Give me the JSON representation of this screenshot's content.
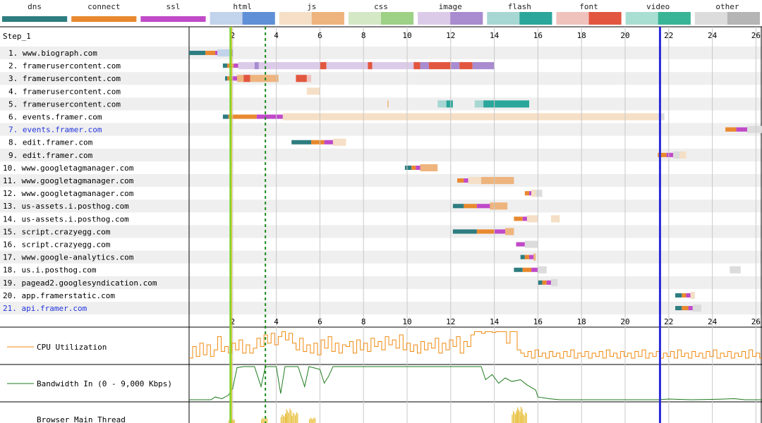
{
  "legend": [
    {
      "label": "dns",
      "colors": [
        "#2e7d80",
        "#2e7d80"
      ]
    },
    {
      "label": "connect",
      "colors": [
        "#e8892f",
        "#e8892f"
      ]
    },
    {
      "label": "ssl",
      "colors": [
        "#c04ac8",
        "#c04ac8"
      ]
    },
    {
      "label": "html",
      "colors": [
        "#c2d3ec",
        "#5f8fd6"
      ]
    },
    {
      "label": "js",
      "colors": [
        "#f5dfc6",
        "#eeb47e"
      ]
    },
    {
      "label": "css",
      "colors": [
        "#d4e8c6",
        "#9dd185"
      ]
    },
    {
      "label": "image",
      "colors": [
        "#dccbe8",
        "#a98bd0"
      ]
    },
    {
      "label": "flash",
      "colors": [
        "#a7d7d3",
        "#2aa69a"
      ]
    },
    {
      "label": "font",
      "colors": [
        "#f0c2bc",
        "#e2563f"
      ]
    },
    {
      "label": "video",
      "colors": [
        "#a9ded3",
        "#38b596"
      ]
    },
    {
      "label": "other",
      "colors": [
        "#dcdcdc",
        "#b5b5b5"
      ]
    }
  ],
  "step_label": "Step_1",
  "chart_data": {
    "type": "waterfall",
    "x_unit": "seconds",
    "x_range": [
      0,
      26.5
    ],
    "x_ticks": [
      2,
      4,
      6,
      8,
      10,
      12,
      14,
      16,
      18,
      20,
      22,
      24,
      26
    ],
    "markers": [
      {
        "name": "start-render",
        "time": 1.9,
        "color": "#7fd43a",
        "style": "solid"
      },
      {
        "name": "first-contentful-paint",
        "time": 1.95,
        "color": "#e0c000",
        "style": "solid"
      },
      {
        "name": "dom-content-loaded",
        "time": 3.5,
        "color": "#1a8a1a",
        "style": "dashed"
      },
      {
        "name": "onload",
        "time": 21.6,
        "color": "#2a2ad8",
        "style": "solid"
      }
    ],
    "requests": [
      {
        "label": "1. www.biograph.com",
        "type": "html",
        "link": false,
        "phases": {
          "dns": [
            0,
            0.75
          ],
          "connect": [
            0.75,
            1.2
          ],
          "ssl": [
            1.2,
            1.3
          ]
        },
        "segments": [
          [
            1.3,
            1.4,
            "l"
          ],
          [
            1.4,
            1.9,
            "l"
          ],
          [
            1.9,
            2.0,
            "d"
          ]
        ]
      },
      {
        "label": "2. framerusercontent.com",
        "type": "image",
        "link": false,
        "phases": {
          "dns": [
            1.55,
            1.75
          ],
          "connect": [
            1.75,
            2.05
          ],
          "ssl": [
            2.05,
            2.25
          ]
        },
        "segments": [
          [
            2.25,
            3.0,
            "l"
          ],
          [
            3.0,
            3.2,
            "d"
          ],
          [
            3.2,
            6.0,
            "l"
          ],
          [
            6.0,
            6.3,
            "f"
          ],
          [
            6.3,
            8.2,
            "l"
          ],
          [
            8.2,
            8.4,
            "f"
          ],
          [
            8.4,
            10.3,
            "l"
          ],
          [
            10.3,
            10.6,
            "f"
          ],
          [
            10.6,
            11.0,
            "d"
          ],
          [
            11.0,
            12.0,
            "f"
          ],
          [
            12.0,
            12.4,
            "d"
          ],
          [
            12.4,
            13.0,
            "f"
          ],
          [
            13.0,
            14.0,
            "d"
          ]
        ]
      },
      {
        "label": "3. framerusercontent.com",
        "type": "font",
        "link": false,
        "phases": {
          "dns": [
            1.65,
            1.75
          ],
          "connect": [
            1.75,
            1.95
          ],
          "ssl": [
            1.95,
            2.2
          ]
        },
        "segments": [
          [
            2.2,
            2.5,
            "j"
          ],
          [
            2.5,
            2.8,
            "f"
          ],
          [
            2.8,
            3.3,
            "j"
          ],
          [
            3.3,
            4.1,
            "jd"
          ],
          [
            4.9,
            5.4,
            "f"
          ],
          [
            5.4,
            5.6,
            "fd"
          ]
        ]
      },
      {
        "label": "4. framerusercontent.com",
        "type": "js",
        "link": false,
        "phases": {},
        "segments": [
          [
            5.4,
            6.0,
            "jl"
          ]
        ]
      },
      {
        "label": "5. framerusercontent.com",
        "type": "flash",
        "link": false,
        "phases": {},
        "segments": [
          [
            9.1,
            9.15,
            "jd"
          ],
          [
            11.4,
            11.8,
            "l"
          ],
          [
            11.8,
            12.1,
            "d"
          ],
          [
            13.1,
            13.5,
            "l"
          ],
          [
            13.5,
            15.6,
            "d"
          ]
        ]
      },
      {
        "label": "6. events.framer.com",
        "type": "js",
        "link": false,
        "phases": {
          "dns": [
            1.55,
            1.8
          ],
          "connect": [
            1.8,
            3.1
          ],
          "ssl": [
            3.1,
            4.3
          ]
        },
        "segments": [
          [
            4.3,
            21.5,
            "jl"
          ],
          [
            21.5,
            21.8,
            "ol"
          ]
        ]
      },
      {
        "label": "7. events.framer.com",
        "type": "other",
        "link": true,
        "phases": {
          "connect": [
            24.6,
            25.1
          ],
          "ssl": [
            25.1,
            25.6
          ]
        },
        "segments": [
          [
            25.6,
            26.5,
            "ol"
          ]
        ]
      },
      {
        "label": "8. edit.framer.com",
        "type": "js",
        "link": false,
        "phases": {
          "dns": [
            4.7,
            5.6
          ],
          "connect": [
            5.6,
            6.2
          ],
          "ssl": [
            6.2,
            6.6
          ]
        },
        "segments": [
          [
            6.6,
            7.2,
            "jl"
          ]
        ]
      },
      {
        "label": "9. edit.framer.com",
        "type": "other",
        "link": false,
        "phases": {
          "connect": [
            21.5,
            21.9
          ],
          "ssl": [
            21.9,
            22.2
          ]
        },
        "segments": [
          [
            22.2,
            22.5,
            "ol"
          ],
          [
            22.5,
            22.8,
            "jl"
          ]
        ]
      },
      {
        "label": "10. www.googletagmanager.com",
        "type": "js",
        "link": false,
        "phases": {
          "dns": [
            9.9,
            10.2
          ],
          "connect": [
            10.2,
            10.4
          ],
          "ssl": [
            10.4,
            10.6
          ]
        },
        "segments": [
          [
            10.6,
            11.4,
            "jd"
          ]
        ]
      },
      {
        "label": "11. www.googletagmanager.com",
        "type": "js",
        "link": false,
        "phases": {
          "connect": [
            12.3,
            12.6
          ],
          "ssl": [
            12.6,
            12.8
          ]
        },
        "segments": [
          [
            12.8,
            13.4,
            "jl"
          ],
          [
            13.4,
            14.9,
            "jd"
          ]
        ]
      },
      {
        "label": "12. www.googletagmanager.com",
        "type": "other",
        "link": false,
        "phases": {
          "connect": [
            15.4,
            15.6
          ],
          "ssl": [
            15.6,
            15.7
          ]
        },
        "segments": [
          [
            15.7,
            15.9,
            "jl"
          ],
          [
            15.9,
            16.2,
            "ol"
          ]
        ]
      },
      {
        "label": "13. us-assets.i.posthog.com",
        "type": "js",
        "link": false,
        "phases": {
          "dns": [
            12.1,
            12.6
          ],
          "connect": [
            12.6,
            13.2
          ],
          "ssl": [
            13.2,
            13.8
          ]
        },
        "segments": [
          [
            13.8,
            14.6,
            "jd"
          ]
        ]
      },
      {
        "label": "14. us-assets.i.posthog.com",
        "type": "js",
        "link": false,
        "phases": {
          "connect": [
            14.9,
            15.3
          ],
          "ssl": [
            15.3,
            15.5
          ]
        },
        "segments": [
          [
            15.5,
            16.0,
            "jl"
          ],
          [
            16.6,
            17.0,
            "jl"
          ]
        ]
      },
      {
        "label": "15. script.crazyegg.com",
        "type": "js",
        "link": false,
        "phases": {
          "dns": [
            12.1,
            13.2
          ],
          "connect": [
            13.2,
            14.0
          ],
          "ssl": [
            14.0,
            14.5
          ]
        },
        "segments": [
          [
            14.5,
            14.9,
            "jd"
          ]
        ]
      },
      {
        "label": "16. script.crazyegg.com",
        "type": "other",
        "link": false,
        "phases": {
          "ssl": [
            15.0,
            15.4
          ]
        },
        "segments": [
          [
            15.4,
            16.0,
            "ol"
          ]
        ]
      },
      {
        "label": "17. www.google-analytics.com",
        "type": "js",
        "link": false,
        "phases": {
          "dns": [
            15.2,
            15.4
          ],
          "connect": [
            15.4,
            15.6
          ],
          "ssl": [
            15.6,
            15.8
          ]
        },
        "segments": [
          [
            15.8,
            15.9,
            "jd"
          ]
        ]
      },
      {
        "label": "18. us.i.posthog.com",
        "type": "other",
        "link": false,
        "phases": {
          "dns": [
            14.9,
            15.3
          ],
          "connect": [
            15.3,
            15.7
          ],
          "ssl": [
            15.7,
            16.0
          ]
        },
        "segments": [
          [
            16.0,
            16.4,
            "ol"
          ],
          [
            24.8,
            25.3,
            "ol"
          ]
        ]
      },
      {
        "label": "19. pagead2.googlesyndication.com",
        "type": "js",
        "link": false,
        "phases": {
          "dns": [
            16.0,
            16.2
          ],
          "connect": [
            16.2,
            16.4
          ],
          "ssl": [
            16.4,
            16.6
          ]
        },
        "segments": [
          [
            16.6,
            16.9,
            "ol"
          ]
        ]
      },
      {
        "label": "20. app.framerstatic.com",
        "type": "js",
        "link": false,
        "phases": {
          "dns": [
            22.3,
            22.6
          ],
          "connect": [
            22.6,
            22.8
          ],
          "ssl": [
            22.8,
            23.0
          ]
        },
        "segments": [
          [
            23.0,
            23.2,
            "jl"
          ]
        ]
      },
      {
        "label": "21. api.framer.com",
        "type": "other",
        "link": true,
        "phases": {
          "dns": [
            22.3,
            22.6
          ],
          "connect": [
            22.6,
            22.9
          ],
          "ssl": [
            22.9,
            23.1
          ]
        },
        "segments": [
          [
            23.1,
            23.5,
            "ol"
          ]
        ]
      }
    ],
    "cpu": {
      "label": "CPU Utilization",
      "color": "#f08a10",
      "values": [
        0.15,
        0.5,
        0.2,
        0.6,
        0.25,
        0.55,
        0.2,
        0.4,
        0.8,
        0.35,
        0.5,
        0.3,
        0.6,
        0.4,
        0.7,
        0.3,
        0.55,
        0.3,
        0.45,
        0.75,
        0.5,
        0.85,
        0.6,
        0.9,
        0.55,
        0.8,
        0.95,
        0.7,
        0.9,
        0.6,
        0.4,
        0.75,
        0.35,
        0.55,
        0.3,
        0.6,
        0.25,
        0.7,
        0.45,
        0.8,
        0.35,
        0.6,
        0.3,
        0.55,
        0.5,
        0.65,
        0.3,
        0.7,
        0.4,
        0.6,
        0.35,
        0.75,
        0.5,
        0.65,
        0.4,
        0.8,
        0.55,
        0.7,
        0.45,
        0.85,
        0.4,
        0.6,
        0.35,
        0.55,
        0.3,
        0.65,
        0.4,
        0.6,
        0.45,
        0.75,
        0.3,
        0.6,
        0.4,
        0.7,
        0.5,
        0.8,
        0.3,
        0.65,
        0.5,
        0.85,
        0.95,
        0.95,
        0.9,
        0.95,
        0.95,
        0.92,
        0.95,
        0.95,
        0.95,
        0.6,
        0.95,
        0.95,
        0.4,
        0.3,
        0.2,
        0.35,
        0.15,
        0.4,
        0.2,
        0.3,
        0.15,
        0.35,
        0.2,
        0.3,
        0.15,
        0.35,
        0.2,
        0.4,
        0.15,
        0.3,
        0.2,
        0.35,
        0.15,
        0.3,
        0.2,
        0.35,
        0.15,
        0.4,
        0.2,
        0.3,
        0.15,
        0.35,
        0.2,
        0.3,
        0.15,
        0.35,
        0.2,
        0.4,
        0.15,
        0.3,
        0.2,
        0.35,
        0.15,
        0.3,
        0.2,
        0.35,
        0.15,
        0.4,
        0.2,
        0.3,
        0.15,
        0.35,
        0.2,
        0.3,
        0.15,
        0.35,
        0.2,
        0.4,
        0.15,
        0.3,
        0.2,
        0.35,
        0.15,
        0.3,
        0.2,
        0.35,
        0.15,
        0.4,
        0.2,
        0.3,
        0.15,
        0.35
      ]
    },
    "bandwidth": {
      "label": "Bandwidth In (0 - 9,000 Kbps)",
      "color": "#1e7a1e",
      "max_kbps": 9000,
      "points": [
        [
          0,
          0.02
        ],
        [
          1.0,
          0.02
        ],
        [
          1.2,
          0.1
        ],
        [
          1.5,
          0.05
        ],
        [
          1.8,
          0.15
        ],
        [
          2.0,
          0.35
        ],
        [
          2.2,
          0.95
        ],
        [
          2.5,
          0.98
        ],
        [
          3.0,
          0.98
        ],
        [
          3.3,
          0.4
        ],
        [
          3.5,
          0.98
        ],
        [
          4.0,
          0.98
        ],
        [
          4.2,
          0.2
        ],
        [
          4.4,
          0.98
        ],
        [
          5.0,
          0.98
        ],
        [
          5.3,
          0.4
        ],
        [
          5.5,
          0.98
        ],
        [
          6.0,
          0.9
        ],
        [
          6.2,
          0.5
        ],
        [
          6.4,
          0.7
        ],
        [
          6.6,
          0.98
        ],
        [
          10.0,
          0.98
        ],
        [
          13.4,
          0.98
        ],
        [
          13.6,
          0.6
        ],
        [
          13.9,
          0.75
        ],
        [
          14.2,
          0.5
        ],
        [
          14.5,
          0.65
        ],
        [
          14.8,
          0.55
        ],
        [
          15.2,
          0.6
        ],
        [
          15.5,
          0.45
        ],
        [
          15.9,
          0.3
        ],
        [
          16.0,
          0.1
        ],
        [
          16.5,
          0.05
        ],
        [
          17.0,
          0.02
        ],
        [
          21.5,
          0.02
        ],
        [
          22.0,
          0.04
        ],
        [
          23.0,
          0.02
        ],
        [
          24.0,
          0.03
        ],
        [
          25.0,
          0.05
        ],
        [
          25.5,
          0.02
        ],
        [
          26.5,
          0.02
        ]
      ]
    },
    "main_thread": {
      "label": "Browser Main Thread",
      "bursts": [
        [
          1.8,
          0.2
        ],
        [
          3.3,
          0.3
        ],
        [
          4.2,
          0.5
        ],
        [
          4.4,
          0.8
        ],
        [
          4.7,
          0.6
        ],
        [
          5.5,
          0.3
        ],
        [
          14.8,
          0.7
        ],
        [
          15.0,
          0.9
        ],
        [
          15.2,
          0.6
        ]
      ]
    }
  }
}
